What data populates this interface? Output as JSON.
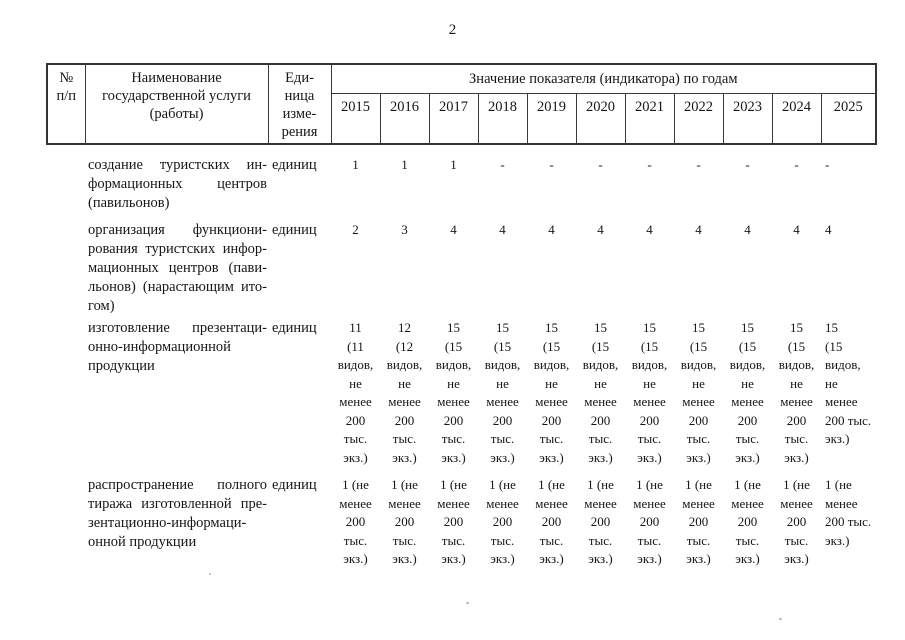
{
  "page": {
    "number": "2"
  },
  "table": {
    "header": {
      "col_num": "№\nп/п",
      "col_name": "Наименование\nгосударственной услуги\n(работы)",
      "col_unit": "Еди-\nница\nизме-\nрения",
      "years_group": "Значение показателя (индикатора) по годам",
      "years": [
        "2015",
        "2016",
        "2017",
        "2018",
        "2019",
        "2020",
        "2021",
        "2022",
        "2023",
        "2024",
        "2025"
      ]
    },
    "rows": [
      {
        "name_justified": "создание туристских ин-\nформационных центров",
        "name_last": "(павильонов)",
        "unit": "единиц",
        "values": [
          "1",
          "1",
          "1",
          "-",
          "-",
          "-",
          "-",
          "-",
          "-",
          "-",
          "-"
        ]
      },
      {
        "name_justified": "организация функциони-\nрования туристских инфор-\nмационных центров (пави-\nльонов) (нарастающим ито-",
        "name_last": "гом)",
        "unit": "единиц",
        "values": [
          "2",
          "3",
          "4",
          "4",
          "4",
          "4",
          "4",
          "4",
          "4",
          "4",
          "4"
        ]
      },
      {
        "name_justified": "изготовление презентаци-\nонно-информационной",
        "name_last": "продукции",
        "unit": "единиц",
        "values": [
          "11\n(11\nвидов,\nне\nменее\n200\nтыс.\nэкз.)",
          "12\n(12\nвидов,\nне\nменее\n200\nтыс.\nэкз.)",
          "15\n(15\nвидов,\nне\nменее\n200\nтыс.\nэкз.)",
          "15\n(15\nвидов,\nне\nменее\n200\nтыс.\nэкз.)",
          "15\n(15\nвидов,\nне\nменее\n200\nтыс.\nэкз.)",
          "15\n(15\nвидов,\nне\nменее\n200\nтыс.\nэкз.)",
          "15\n(15\nвидов,\nне\nменее\n200\nтыс.\nэкз.)",
          "15\n(15\nвидов,\nне\nменее\n200\nтыс.\nэкз.)",
          "15\n(15\nвидов,\nне\nменее\n200\nтыс.\nэкз.)",
          "15\n(15\nвидов,\nне\nменее\n200\nтыс.\nэкз.)",
          "15\n(15\nвидов,\nне\nменее\n200 тыс.\nэкз.)"
        ]
      },
      {
        "name_justified": "распространение полного\nтиража изготовленной пре-\nзентационно-информаци-",
        "name_last": "онной продукции",
        "unit": "единиц",
        "values": [
          "1 (не\nменее\n200\nтыс.\nэкз.)",
          "1 (не\nменее\n200\nтыс.\nэкз.)",
          "1 (не\nменее\n200\nтыс.\nэкз.)",
          "1 (не\nменее\n200\nтыс.\nэкз.)",
          "1 (не\nменее\n200\nтыс.\nэкз.)",
          "1 (не\nменее\n200\nтыс.\nэкз.)",
          "1 (не\nменее\n200\nтыс.\nэкз.)",
          "1 (не\nменее\n200\nтыс.\nэкз.)",
          "1 (не\nменее\n200\nтыс.\nэкз.)",
          "1 (не\nменее\n200\nтыс.\nэкз.)",
          "1 (не\nменее\n200 тыс.\nэкз.)"
        ]
      }
    ]
  }
}
